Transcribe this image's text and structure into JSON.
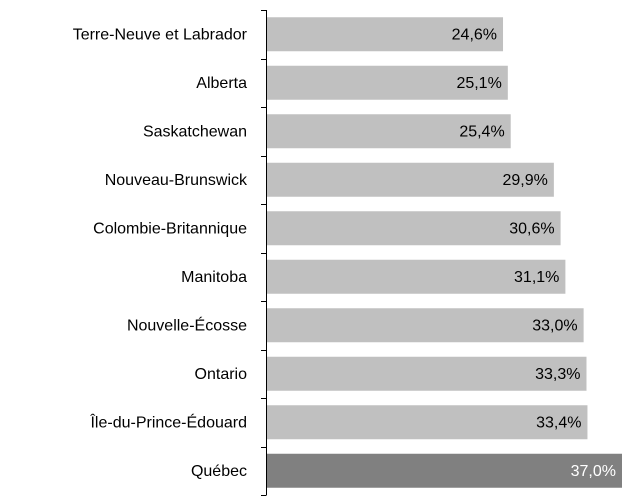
{
  "chart_data": {
    "type": "hbar",
    "categories": [
      "Terre-Neuve et Labrador",
      "Alberta",
      "Saskatchewan",
      "Nouveau-Brunswick",
      "Colombie-Britannique",
      "Manitoba",
      "Nouvelle-Écosse",
      "Ontario",
      "Île-du-Prince-Édouard",
      "Québec"
    ],
    "values": [
      24.6,
      25.1,
      25.4,
      29.9,
      30.6,
      31.1,
      33.0,
      33.3,
      33.4,
      37.0
    ],
    "value_labels": [
      "24,6%",
      "25,1%",
      "25,4%",
      "29,9%",
      "30,6%",
      "31,1%",
      "33,0%",
      "33,3%",
      "33,4%",
      "37,0%"
    ],
    "colors": [
      "#c0c0c0",
      "#c0c0c0",
      "#c0c0c0",
      "#c0c0c0",
      "#c0c0c0",
      "#c0c0c0",
      "#c0c0c0",
      "#c0c0c0",
      "#c0c0c0",
      "#808080"
    ],
    "xlim": [
      0,
      37
    ]
  }
}
